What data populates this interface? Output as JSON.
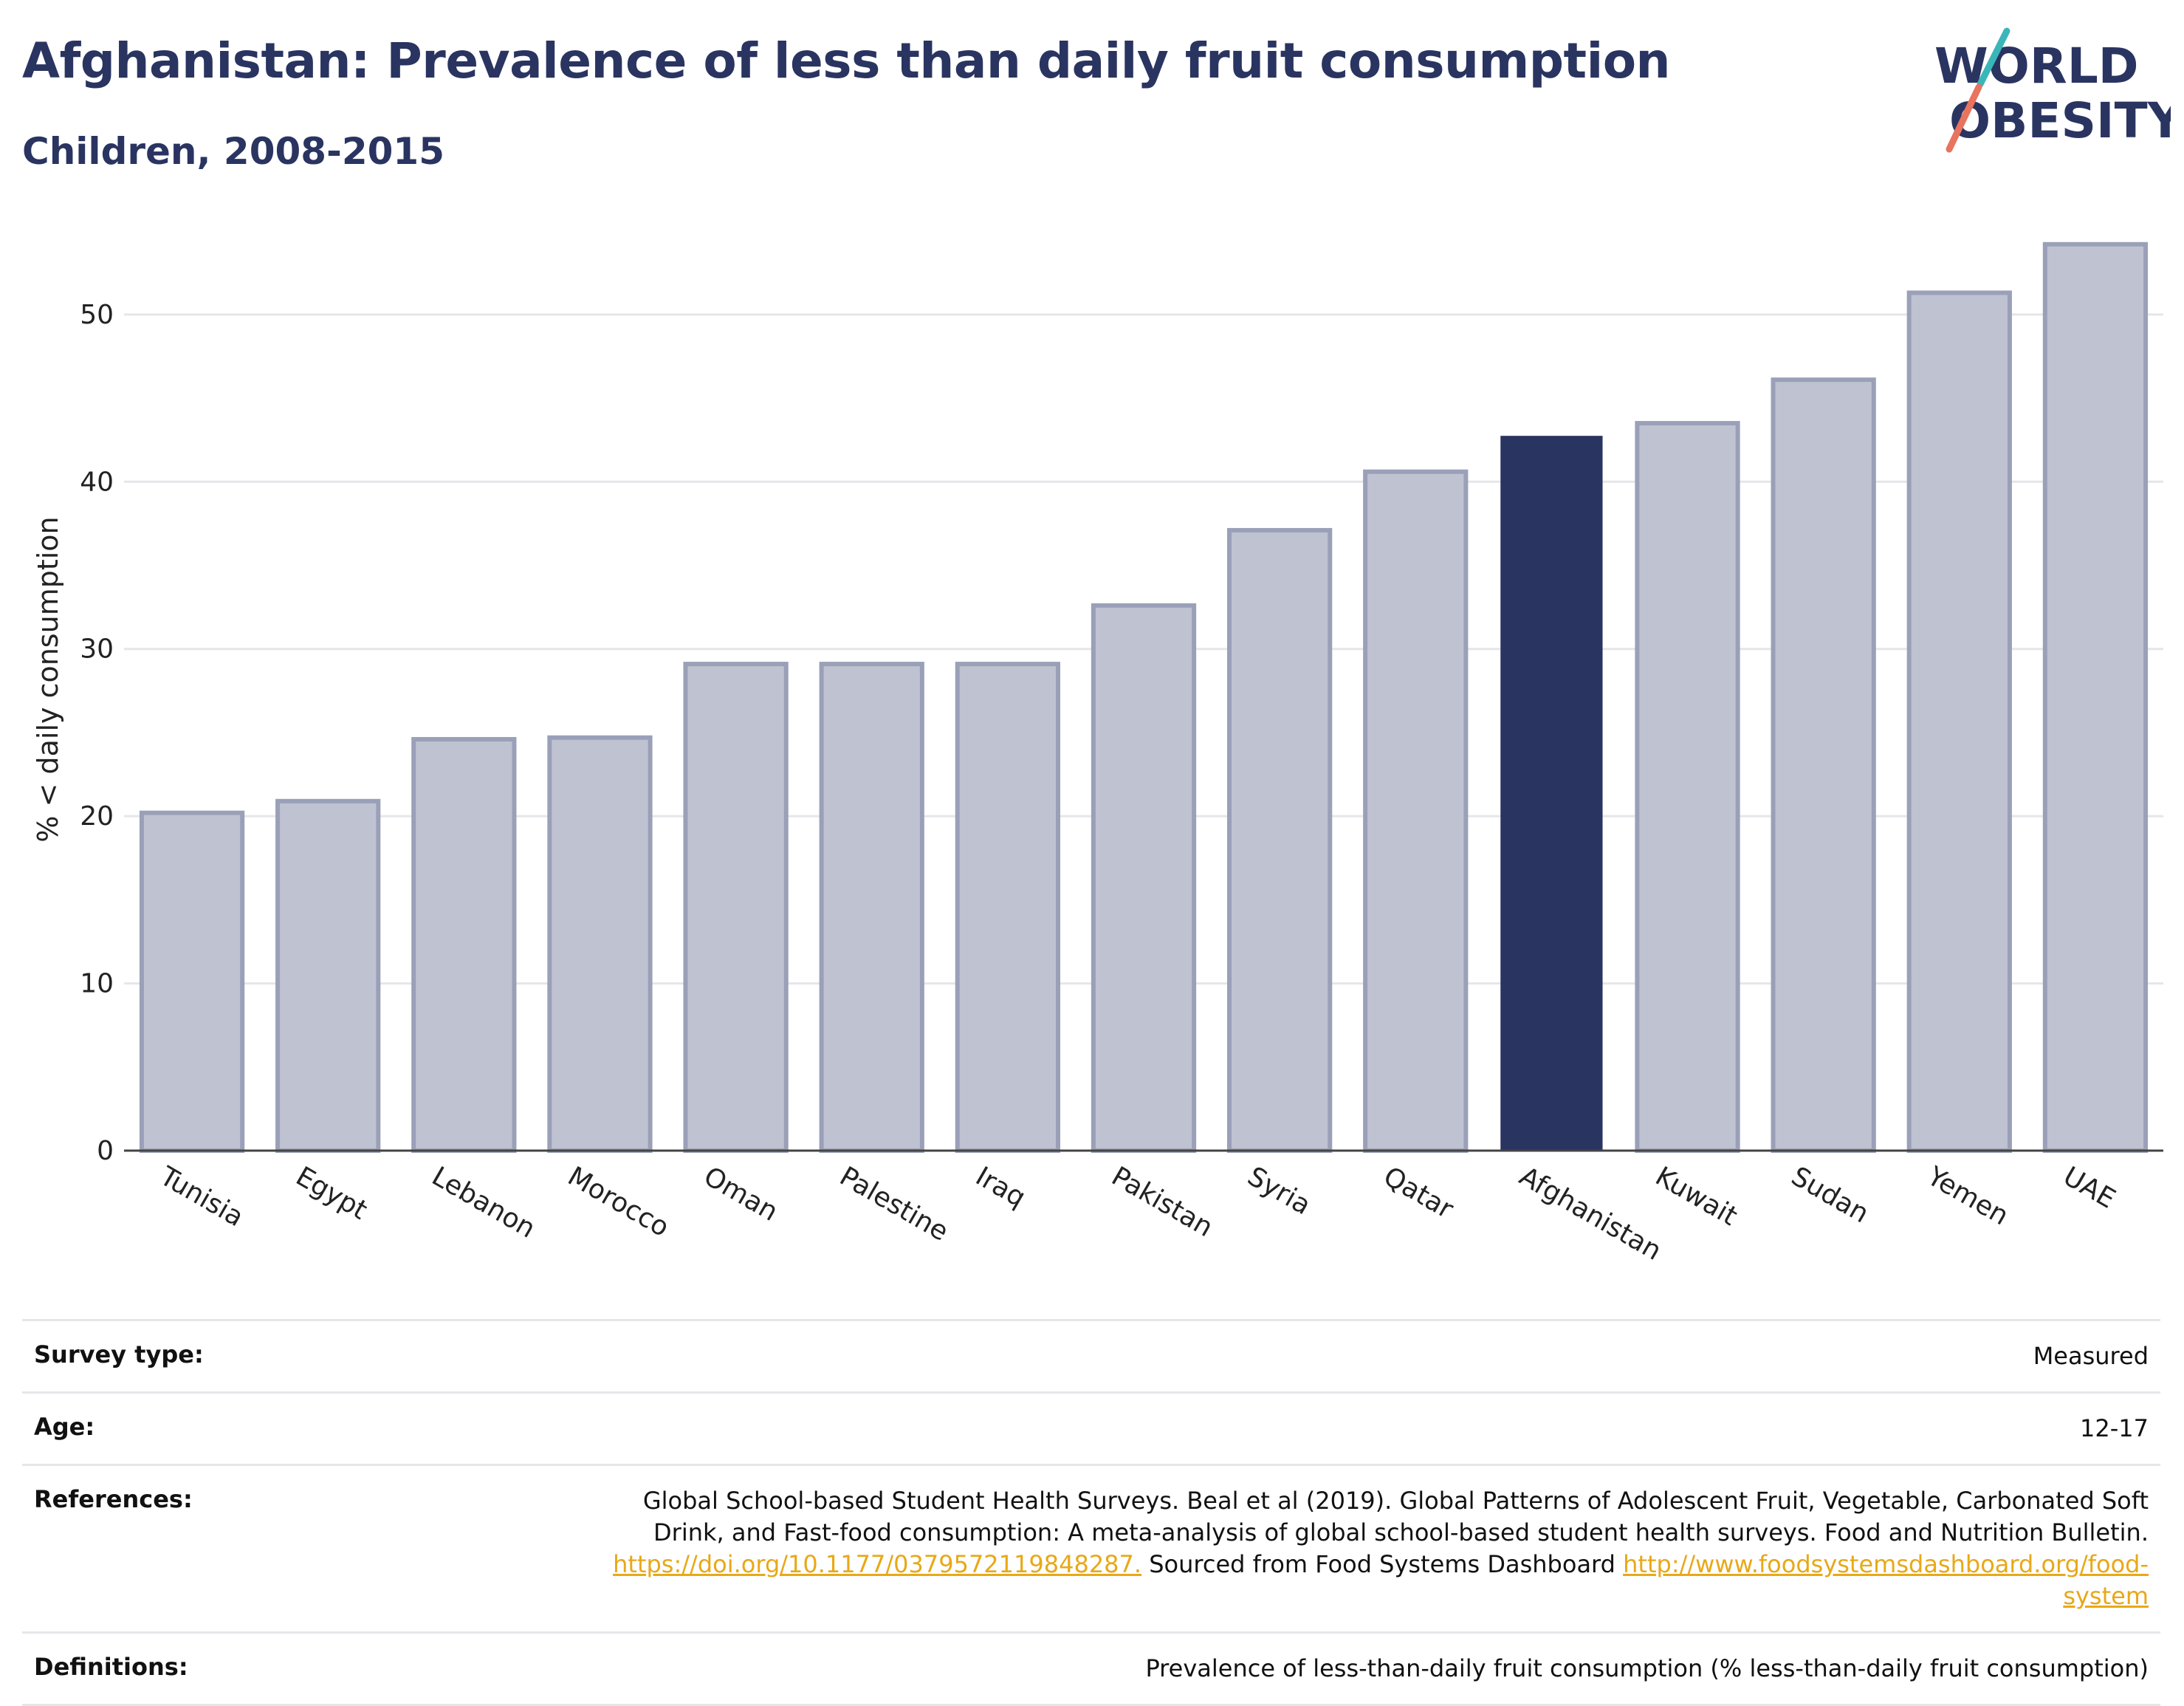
{
  "header": {
    "title": "Afghanistan: Prevalence of less than daily fruit consumption",
    "subtitle": "Children, 2008-2015"
  },
  "logo": {
    "line1": "WORLD",
    "line2": "OBESITY",
    "accent_teal": "#3ab6b8",
    "accent_coral": "#e8735e"
  },
  "colors": {
    "highlight_bar": "#2a3461",
    "other_bar_fill": "#bfc3d1",
    "other_bar_stroke": "#9aa0b8",
    "grid": "#e6e6ea",
    "link": "#e8a817"
  },
  "chart_data": {
    "type": "bar",
    "categories": [
      "Tunisia",
      "Egypt",
      "Lebanon",
      "Morocco",
      "Oman",
      "Palestine",
      "Iraq",
      "Pakistan",
      "Syria",
      "Qatar",
      "Afghanistan",
      "Kuwait",
      "Sudan",
      "Yemen",
      "UAE"
    ],
    "values": [
      20.2,
      20.9,
      24.6,
      24.7,
      29.1,
      29.1,
      29.1,
      32.6,
      37.1,
      40.6,
      42.7,
      43.5,
      46.1,
      51.3,
      54.2
    ],
    "highlight": "Afghanistan",
    "title": "Afghanistan: Prevalence of less than daily fruit consumption",
    "subtitle": "Children, 2008-2015",
    "xlabel": "",
    "ylabel": "% < daily consumption",
    "yticks": [
      0,
      10,
      20,
      30,
      40,
      50
    ],
    "ylim": [
      0,
      56
    ],
    "grid": true,
    "legend": "none"
  },
  "meta": {
    "survey_type_label": "Survey type:",
    "survey_type_value": "Measured",
    "age_label": "Age:",
    "age_value": "12-17",
    "references_label": "References:",
    "references_text1": "Global School-based Student Health Surveys. Beal et al (2019). Global Patterns of Adolescent Fruit, Vegetable, Carbonated Soft Drink, and Fast-food consumption: A meta-analysis of global school-based student health surveys. Food and Nutrition Bulletin.",
    "references_link1": "https://doi.org/10.1177/0379572119848287.",
    "references_text2": "Sourced from Food Systems Dashboard",
    "references_link2": "http://www.foodsystemsdashboard.org/food-system",
    "definitions_label": "Definitions:",
    "definitions_value": "Prevalence of less-than-daily fruit consumption (% less-than-daily fruit consumption)"
  }
}
